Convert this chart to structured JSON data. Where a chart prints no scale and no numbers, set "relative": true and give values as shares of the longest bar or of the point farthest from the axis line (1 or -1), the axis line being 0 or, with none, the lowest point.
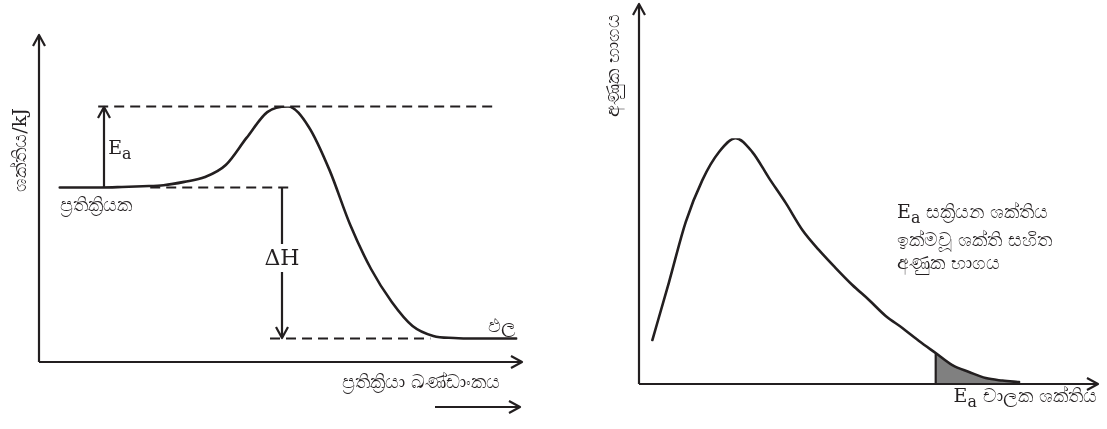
{
  "chart_data": [
    {
      "type": "line",
      "relative": true,
      "ylabel": "ශක්තිය/kJ",
      "xlabel": "ප්‍රතික්‍රියා ඛණ්ඩාංකය",
      "categories": [
        null,
        null,
        null,
        null,
        null,
        null,
        null,
        null,
        null,
        null,
        null,
        null,
        null,
        null,
        null,
        null,
        null,
        null,
        null,
        null,
        null,
        null,
        null,
        null
      ],
      "series": [
        {
          "color": "#231f20",
          "values": [
            null,
            0.683,
            0.683,
            0.683,
            0.685,
            0.688,
            0.692,
            0.705,
            0.724,
            0.771,
            0.877,
            0.978,
            1,
            0.92,
            0.751,
            0.536,
            0.364,
            0.235,
            0.141,
            0.102,
            0.094,
            0.092,
            0.092,
            0.092
          ]
        }
      ],
      "ref_lines": [
        {
          "axis": "y",
          "value": 1,
          "line_style": "dashed",
          "color": "#231f20"
        },
        {
          "axis": "y",
          "value": 0.683,
          "line_style": "dashed",
          "color": "#231f20"
        },
        {
          "axis": "y",
          "value": 0.092,
          "line_style": "dashed",
          "color": "#231f20"
        }
      ],
      "annotations": [
        "E$_{a}$",
        "ΔH",
        "ප්‍රතික්‍රියක",
        "ඵල"
      ]
    },
    {
      "type": "line",
      "relative": true,
      "ylabel": "අණුක භාගය",
      "xlabel": "E$_{a}$ චාලක ශක්තිය",
      "categories": [
        null,
        null,
        null,
        null,
        null,
        null,
        null,
        null,
        null,
        null,
        null,
        null,
        null,
        null,
        null,
        null,
        null,
        null,
        null,
        null,
        null,
        null,
        null,
        null,
        null,
        null,
        null,
        null
      ],
      "series": [
        {
          "color": "#231f20",
          "values": [
            null,
            0.179,
            0.415,
            0.659,
            0.83,
            0.944,
            1,
            0.944,
            0.838,
            0.737,
            0.627,
            0.545,
            0.472,
            0.403,
            0.342,
            0.277,
            0.228,
            0.175,
            0.126,
            0.077,
            0.049,
            0.024,
            0.014,
            0.008,
            null,
            null,
            null,
            null
          ]
        },
        {
          "type": "area",
          "color": "#808080",
          "values": [
            null,
            null,
            null,
            null,
            null,
            null,
            null,
            null,
            null,
            null,
            null,
            null,
            null,
            null,
            null,
            null,
            null,
            null,
            0.126,
            0.077,
            0.049,
            0.024,
            0.014,
            0.008,
            null,
            null,
            null,
            null
          ]
        }
      ],
      "annotations": [
        "E$_{a}$ සක්‍රියන ශක්තිය\nඉක්මවූ ශක්ති සහිත\nඅණුක භාගය"
      ]
    }
  ]
}
